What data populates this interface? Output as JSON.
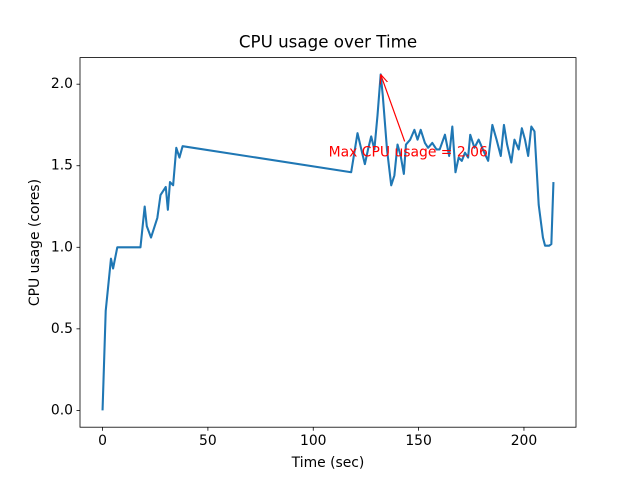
{
  "chart_data": {
    "type": "line",
    "title": "CPU usage over Time",
    "x_label": "Time (sec)",
    "y_label": "CPU usage (cores)",
    "xlim": [
      -10.7,
      224.7
    ],
    "ylim": [
      -0.103,
      2.163
    ],
    "xticks": [
      0,
      50,
      100,
      150,
      200
    ],
    "yticks": [
      {
        "value": 0,
        "label": "0.0"
      },
      0.5,
      {
        "value": 1,
        "label": "1.0"
      },
      1.5,
      {
        "value": 2,
        "label": "2.0"
      }
    ],
    "grid": false,
    "series": [
      {
        "color": "#1f77b4",
        "x": [
          0,
          1.5,
          4,
          5,
          7,
          18,
          20,
          21,
          23,
          26,
          27.5,
          30,
          31,
          32,
          33.5,
          35,
          36.5,
          38,
          118,
          121,
          123,
          124.5,
          126,
          127.5,
          129,
          130.5,
          132,
          133,
          135,
          137,
          138.5,
          140,
          141.5,
          143,
          144,
          146,
          148,
          149.5,
          151,
          153,
          154.5,
          156.5,
          158.5,
          160,
          162.5,
          164.5,
          166,
          167.5,
          169,
          170.5,
          172,
          173.5,
          174.5,
          176.5,
          178.5,
          180.5,
          183,
          185,
          187,
          189,
          190.5,
          192,
          194,
          195.5,
          197.5,
          199,
          200.5,
          202,
          203.5,
          205,
          207,
          209,
          210,
          212,
          213,
          214
        ],
        "values": [
          0,
          0.61,
          0.93,
          0.87,
          1.0,
          1.0,
          1.25,
          1.13,
          1.06,
          1.18,
          1.32,
          1.37,
          1.23,
          1.4,
          1.38,
          1.61,
          1.55,
          1.62,
          1.46,
          1.7,
          1.59,
          1.51,
          1.6,
          1.68,
          1.6,
          1.81,
          2.06,
          1.93,
          1.6,
          1.38,
          1.44,
          1.63,
          1.56,
          1.45,
          1.63,
          1.66,
          1.72,
          1.66,
          1.72,
          1.64,
          1.61,
          1.64,
          1.6,
          1.6,
          1.69,
          1.56,
          1.74,
          1.46,
          1.55,
          1.53,
          1.58,
          1.55,
          1.69,
          1.61,
          1.66,
          1.6,
          1.53,
          1.75,
          1.66,
          1.56,
          1.75,
          1.63,
          1.52,
          1.66,
          1.6,
          1.73,
          1.66,
          1.56,
          1.74,
          1.71,
          1.26,
          1.06,
          1.01,
          1.01,
          1.02,
          1.4
        ]
      }
    ],
    "annotations": [
      {
        "text": "Max CPU usage = 2.06",
        "x": 132,
        "y": 2.06,
        "color": "red"
      }
    ]
  }
}
